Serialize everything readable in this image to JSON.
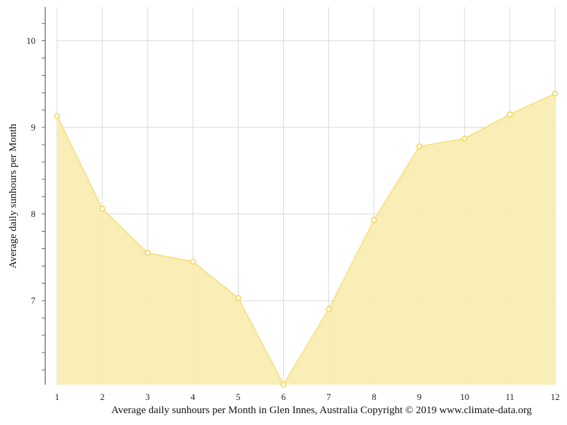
{
  "chart_data": {
    "type": "area",
    "title": "Average daily sunhours per Month in Glen Innes, Australia",
    "xlabel": "",
    "ylabel": "Average daily sunhours per Month",
    "categories": [
      "1",
      "2",
      "3",
      "4",
      "5",
      "6",
      "7",
      "8",
      "9",
      "10",
      "11",
      "12"
    ],
    "x": [
      1,
      2,
      3,
      4,
      5,
      6,
      7,
      8,
      9,
      10,
      11,
      12
    ],
    "series": [
      {
        "name": "Average daily sunhours",
        "values": [
          9.13,
          8.06,
          7.55,
          7.45,
          7.03,
          6.03,
          6.9,
          7.93,
          8.78,
          8.87,
          9.15,
          9.39
        ]
      }
    ],
    "ylim": [
      6.03,
      10.39
    ],
    "xlim": [
      1,
      12
    ],
    "y_ticks": [
      7,
      8,
      9,
      10
    ],
    "y_minor_step": 0.2,
    "grid": true,
    "legend": "none",
    "colors": {
      "fill": "#f9edb0",
      "line": "#f8e28a",
      "marker_stroke": "#f5cf3c",
      "marker_fill": "#ffffff",
      "grid": "#d9d9d9",
      "axis": "#666666"
    }
  },
  "footer": {
    "caption": "Average daily sunhours per Month in Glen Innes, Australia Copyright © 2019 www.climate-data.org"
  }
}
